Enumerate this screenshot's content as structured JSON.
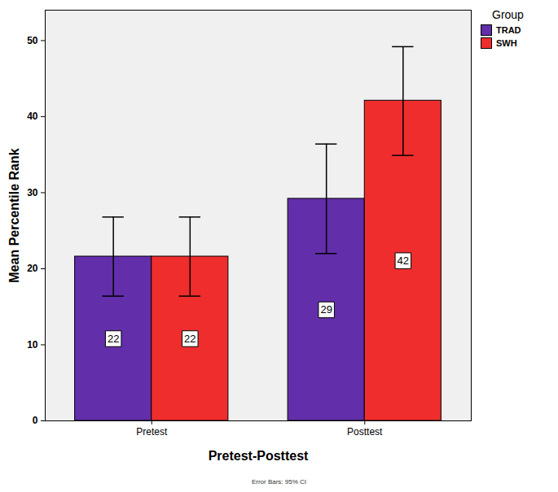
{
  "chart_data": {
    "type": "bar",
    "x_label": "Pretest-Posttest",
    "y_label": "Mean Percentile Rank",
    "categories": [
      "Pretest",
      "Posttest"
    ],
    "series": [
      {
        "name": "TRAD",
        "color": "#622eaa",
        "values": [
          21.6,
          29.2
        ],
        "value_labels": [
          "22",
          "29"
        ],
        "error_low": [
          16.4,
          22.0
        ],
        "error_high": [
          26.8,
          36.4
        ]
      },
      {
        "name": "SWH",
        "color": "#ef2d2d",
        "values": [
          21.6,
          42.1
        ],
        "value_labels": [
          "22",
          "42"
        ],
        "error_low": [
          16.4,
          34.9
        ],
        "error_high": [
          26.8,
          49.2
        ]
      }
    ],
    "ylim": [
      0,
      54
    ],
    "yticks": [
      0,
      10,
      20,
      30,
      40,
      50
    ],
    "grid": false,
    "legend": "right",
    "legend_title": "Group",
    "data_labels": true,
    "caption": "Error Bars: 95% CI"
  }
}
